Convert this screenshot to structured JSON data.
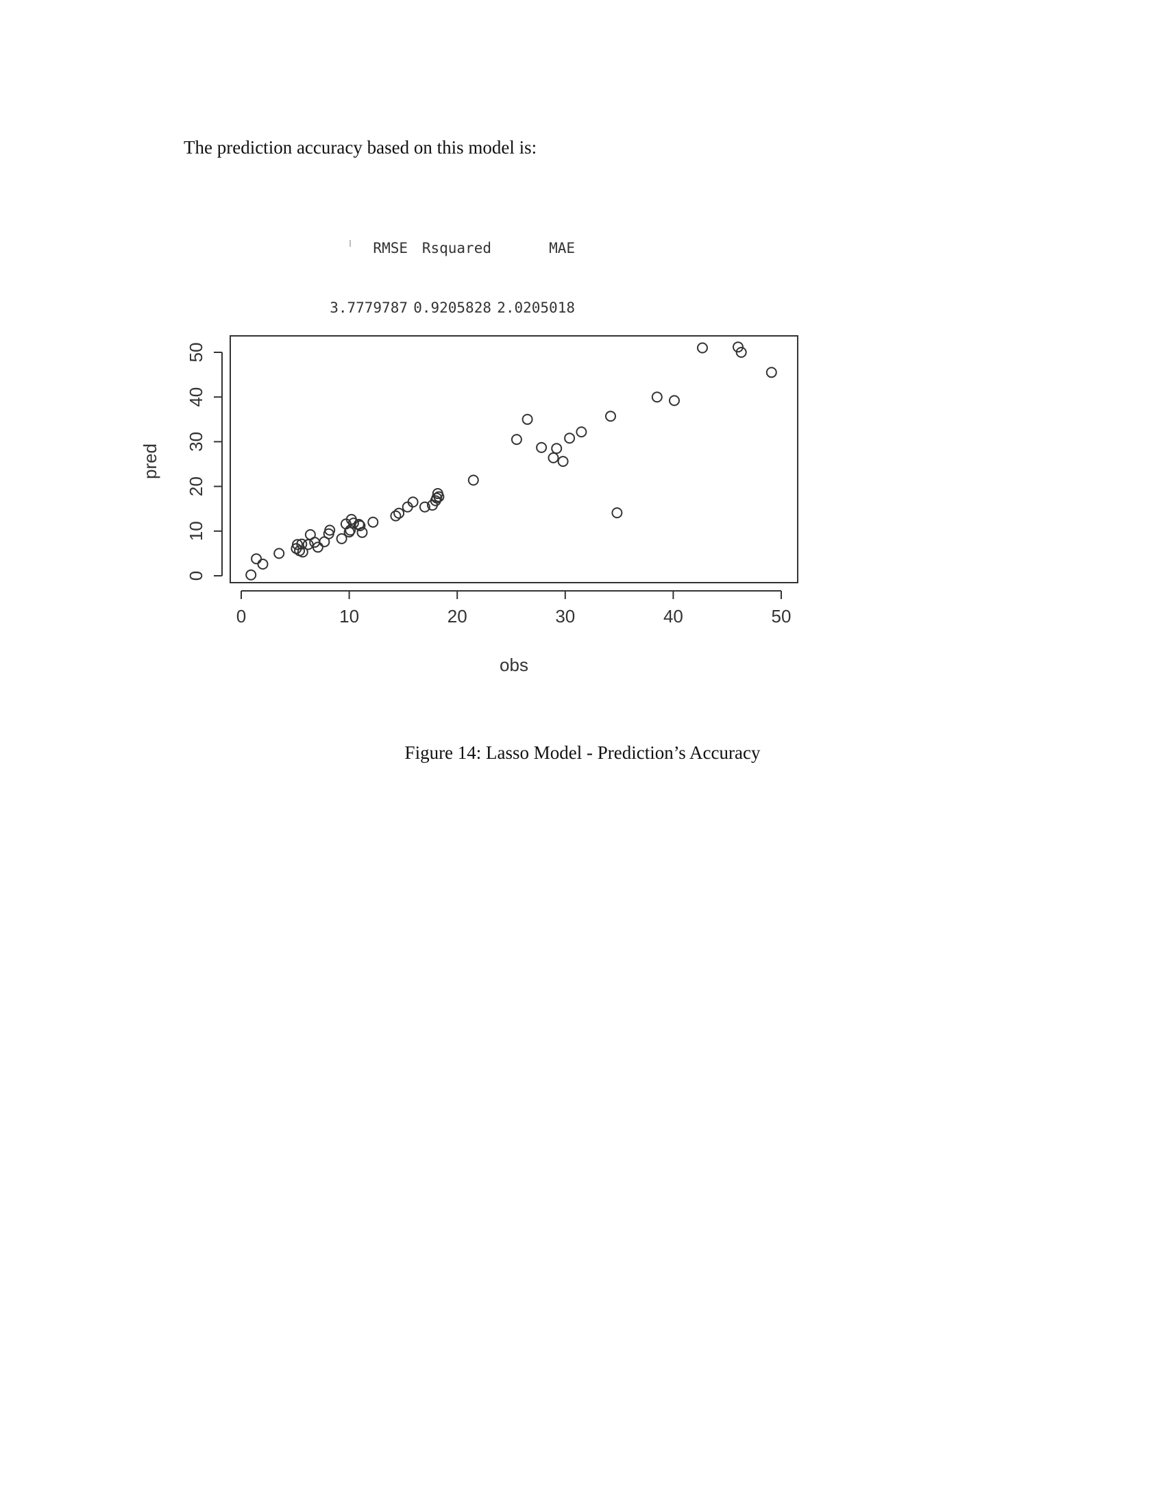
{
  "intro_text": "The prediction accuracy based on this model is:",
  "metrics": {
    "headers": [
      "RMSE",
      "Rsquared",
      "MAE"
    ],
    "values": [
      "3.7779787",
      "0.9205828",
      "2.0205018"
    ]
  },
  "chart_data": {
    "type": "scatter",
    "xlabel": "obs",
    "ylabel": "pred",
    "xlim": [
      -1,
      51
    ],
    "ylim": [
      -2,
      53
    ],
    "xticks": [
      0,
      10,
      20,
      30,
      40,
      50
    ],
    "yticks": [
      0,
      10,
      20,
      30,
      40,
      50
    ],
    "grid": false,
    "marker": "open-circle",
    "points": [
      [
        0.9,
        0.2
      ],
      [
        1.4,
        3.8
      ],
      [
        2.0,
        2.6
      ],
      [
        3.5,
        5.0
      ],
      [
        5.1,
        6.1
      ],
      [
        5.2,
        7.0
      ],
      [
        5.4,
        5.6
      ],
      [
        5.6,
        7.1
      ],
      [
        5.7,
        5.3
      ],
      [
        6.2,
        7.0
      ],
      [
        6.4,
        9.2
      ],
      [
        6.8,
        7.5
      ],
      [
        7.1,
        6.4
      ],
      [
        7.7,
        7.6
      ],
      [
        8.1,
        9.4
      ],
      [
        8.2,
        10.2
      ],
      [
        9.3,
        8.3
      ],
      [
        9.7,
        11.6
      ],
      [
        10.0,
        9.8
      ],
      [
        10.1,
        10.2
      ],
      [
        10.2,
        12.6
      ],
      [
        10.4,
        11.8
      ],
      [
        10.9,
        11.5
      ],
      [
        11.0,
        11.2
      ],
      [
        11.2,
        9.7
      ],
      [
        12.2,
        12.0
      ],
      [
        14.3,
        13.4
      ],
      [
        14.6,
        14.0
      ],
      [
        15.4,
        15.4
      ],
      [
        15.9,
        16.5
      ],
      [
        17.0,
        15.4
      ],
      [
        17.7,
        15.8
      ],
      [
        18.0,
        16.8
      ],
      [
        18.1,
        17.4
      ],
      [
        18.2,
        18.4
      ],
      [
        18.3,
        17.7
      ],
      [
        21.5,
        21.4
      ],
      [
        25.5,
        30.5
      ],
      [
        26.5,
        35.0
      ],
      [
        27.8,
        28.7
      ],
      [
        28.9,
        26.4
      ],
      [
        29.2,
        28.5
      ],
      [
        29.8,
        25.6
      ],
      [
        30.4,
        30.8
      ],
      [
        31.5,
        32.2
      ],
      [
        34.2,
        35.7
      ],
      [
        34.8,
        14.1
      ],
      [
        38.5,
        40.0
      ],
      [
        40.1,
        39.2
      ],
      [
        42.7,
        51.0
      ],
      [
        46.0,
        51.2
      ],
      [
        46.3,
        50.0
      ],
      [
        49.1,
        45.5
      ]
    ]
  },
  "caption": "Figure 14: Lasso Model - Prediction’s Accuracy"
}
